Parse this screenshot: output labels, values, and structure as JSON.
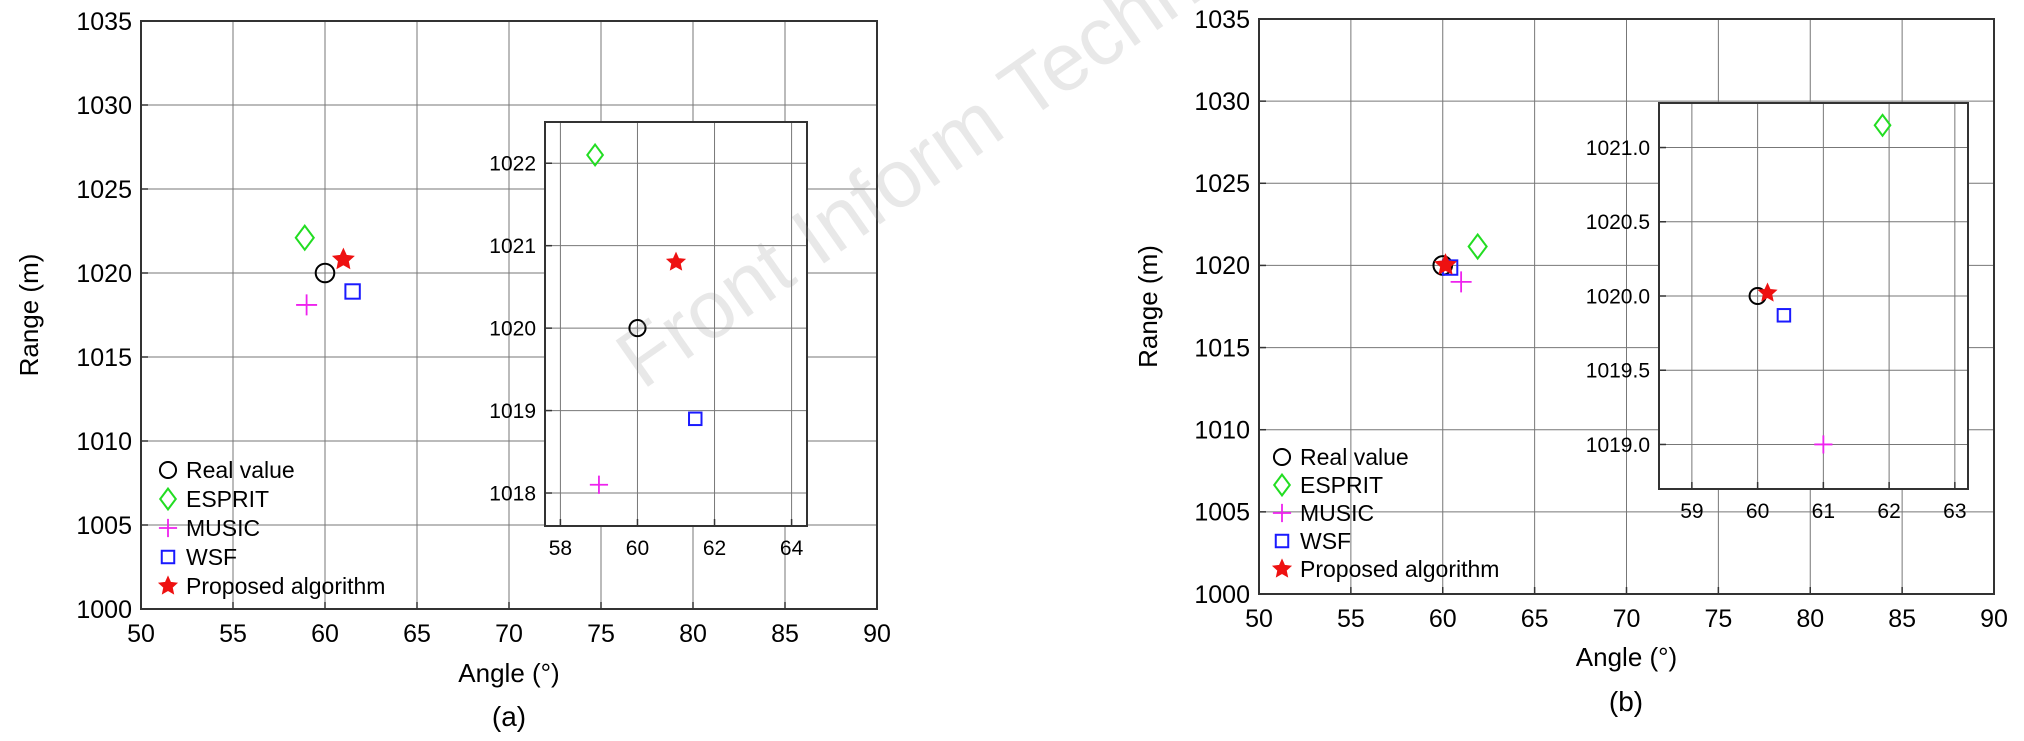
{
  "watermark": "Front Inform Technol Electron Eng",
  "colors": {
    "real": "#000000",
    "esprit": "#22dd22",
    "music": "#ee22ee",
    "wsf": "#1a1aff",
    "proposed": "#ee1111"
  },
  "chart_data": [
    {
      "type": "scatter",
      "caption": "(a)",
      "xlabel": "Angle (°)",
      "ylabel": "Range (m)",
      "xlim": [
        50,
        90
      ],
      "ylim": [
        1000,
        1035
      ],
      "xticks": [
        50,
        55,
        60,
        65,
        70,
        75,
        80,
        85,
        90
      ],
      "yticks": [
        1000,
        1005,
        1010,
        1015,
        1020,
        1025,
        1030,
        1035
      ],
      "grid": true,
      "legend_position": "bottom-left",
      "series": [
        {
          "name": "Real value",
          "marker": "circle",
          "color_key": "real",
          "x": 60.0,
          "y": 1020.0
        },
        {
          "name": "ESPRIT",
          "marker": "diamond",
          "color_key": "esprit",
          "x": 58.9,
          "y": 1022.1
        },
        {
          "name": "MUSIC",
          "marker": "plus",
          "color_key": "music",
          "x": 59.0,
          "y": 1018.1
        },
        {
          "name": "WSF",
          "marker": "square",
          "color_key": "wsf",
          "x": 61.5,
          "y": 1018.9
        },
        {
          "name": "Proposed algorithm",
          "marker": "star",
          "color_key": "proposed",
          "x": 61.0,
          "y": 1020.8
        }
      ],
      "inset": {
        "xlim": [
          57.6,
          64.4
        ],
        "ylim": [
          1017.6,
          1022.5
        ],
        "xticks": [
          58,
          60,
          62,
          64
        ],
        "yticks": [
          1018,
          1019,
          1020,
          1021,
          1022
        ],
        "grid": true
      }
    },
    {
      "type": "scatter",
      "caption": "(b)",
      "xlabel": "Angle (°)",
      "ylabel": "Range (m)",
      "xlim": [
        50,
        90
      ],
      "ylim": [
        1000,
        1035
      ],
      "xticks": [
        50,
        55,
        60,
        65,
        70,
        75,
        80,
        85,
        90
      ],
      "yticks": [
        1000,
        1005,
        1010,
        1015,
        1020,
        1025,
        1030,
        1035
      ],
      "grid": true,
      "legend_position": "bottom-left",
      "series": [
        {
          "name": "Real value",
          "marker": "circle",
          "color_key": "real",
          "x": 60.0,
          "y": 1020.0
        },
        {
          "name": "ESPRIT",
          "marker": "diamond",
          "color_key": "esprit",
          "x": 61.9,
          "y": 1021.15
        },
        {
          "name": "MUSIC",
          "marker": "plus",
          "color_key": "music",
          "x": 61.0,
          "y": 1019.0
        },
        {
          "name": "WSF",
          "marker": "square",
          "color_key": "wsf",
          "x": 60.4,
          "y": 1019.87
        },
        {
          "name": "Proposed algorithm",
          "marker": "star",
          "color_key": "proposed",
          "x": 60.15,
          "y": 1020.02
        }
      ],
      "inset": {
        "xlim": [
          58.5,
          63.2
        ],
        "ylim": [
          1018.7,
          1021.3
        ],
        "xticks": [
          59,
          60,
          61,
          62,
          63
        ],
        "yticks": [
          "1019.0",
          "1019.5",
          "1020.0",
          "1020.5",
          "1021.0"
        ],
        "grid": true
      }
    }
  ]
}
